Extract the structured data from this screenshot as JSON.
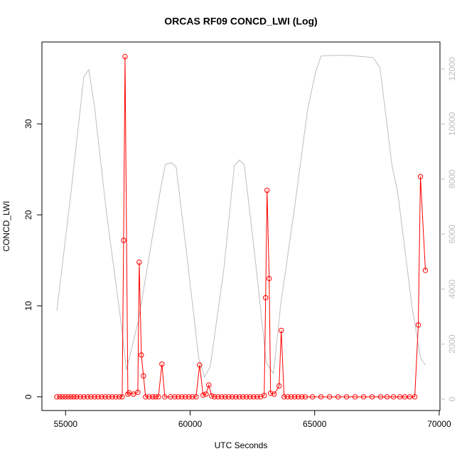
{
  "chart_data": {
    "type": "line",
    "title": "ORCAS RF09 CONCD_LWI (Log)",
    "x_label": "UTC Seconds",
    "y_label": "CONCD_LWI",
    "xlim": [
      54050,
      70030
    ],
    "xticks": [
      55000,
      60000,
      65000,
      70000
    ],
    "ylim": [
      -1.5,
      39
    ],
    "yticks": [
      0,
      10,
      20,
      30
    ],
    "y2lim": [
      -414,
      12983
    ],
    "y2ticks": [
      0,
      2000,
      4000,
      6000,
      8000,
      10000,
      12000
    ],
    "y2_color": "#bebebe",
    "series": [
      {
        "color": "#ff0000",
        "markers": true,
        "x": [
          54649,
          54763,
          54877,
          54991,
          55105,
          55219,
          55333,
          55447,
          55590,
          55732,
          55875,
          56017,
          56160,
          56302,
          56445,
          56587,
          56730,
          56872,
          57015,
          57158,
          57272,
          57329,
          57386,
          57500,
          57557,
          57728,
          57899,
          57956,
          58041,
          58127,
          58212,
          58355,
          58498,
          58612,
          58726,
          58868,
          58982,
          59210,
          59381,
          59524,
          59666,
          59809,
          59952,
          60094,
          60237,
          60379,
          60522,
          60636,
          60750,
          60864,
          60978,
          61120,
          61263,
          61406,
          61548,
          61691,
          61833,
          61976,
          62118,
          62261,
          62403,
          62546,
          62689,
          62831,
          62974,
          63031,
          63088,
          63173,
          63230,
          63373,
          63572,
          63658,
          63772,
          63914,
          64057,
          64200,
          64342,
          64485,
          64627,
          64912,
          65254,
          65597,
          65939,
          66281,
          66623,
          66965,
          67307,
          67649,
          67906,
          68162,
          68419,
          68619,
          68818,
          69018,
          69160,
          69246,
          69445
        ],
        "values": [
          0,
          0,
          0,
          0,
          0,
          0,
          0,
          0,
          0,
          0,
          0,
          0,
          0,
          0,
          0,
          0,
          0,
          0,
          0,
          0,
          0,
          17.2,
          37.4,
          0.3,
          0.45,
          0.3,
          0.5,
          14.8,
          4.6,
          2.3,
          0,
          0,
          0,
          0,
          0,
          3.6,
          0,
          0,
          0,
          0,
          0,
          0,
          0,
          0,
          0,
          3.5,
          0.2,
          0.3,
          1.3,
          0.1,
          0,
          0,
          0,
          0,
          0,
          0,
          0,
          0,
          0,
          0,
          0,
          0,
          0,
          0,
          0.15,
          10.9,
          22.7,
          13.0,
          0.4,
          0.3,
          1.2,
          7.3,
          0,
          0,
          0,
          0,
          0,
          0,
          0,
          0,
          0,
          0,
          0,
          0,
          0,
          0,
          0,
          0,
          0,
          0,
          0,
          0,
          0,
          0,
          7.9,
          24.2,
          13.9
        ]
      },
      {
        "color": "#bebebe",
        "axis": "y2",
        "markers": false,
        "x": [
          54649,
          55219,
          55732,
          55932,
          56160,
          56644,
          57214,
          57443,
          57927,
          58498,
          58868,
          59011,
          59267,
          59438,
          59838,
          60351,
          60579,
          60807,
          61349,
          61776,
          61976,
          62175,
          62632,
          63059,
          63344,
          63629,
          64200,
          64542,
          64713,
          65026,
          65254,
          65768,
          66338,
          67336,
          67621,
          68105,
          68333,
          68904,
          69246,
          69445
        ],
        "values": [
          3208,
          7529,
          11720,
          11979,
          10634,
          6753,
          2872,
          1061,
          2872,
          5977,
          7917,
          8538,
          8590,
          8435,
          5459,
          1449,
          802,
          1190,
          4683,
          8486,
          8693,
          8512,
          4942,
          1320,
          931,
          3389,
          7012,
          9340,
          10504,
          11850,
          12471,
          12497,
          12497,
          12419,
          12057,
          8486,
          7529,
          3389,
          1500,
          1242
        ]
      }
    ]
  }
}
